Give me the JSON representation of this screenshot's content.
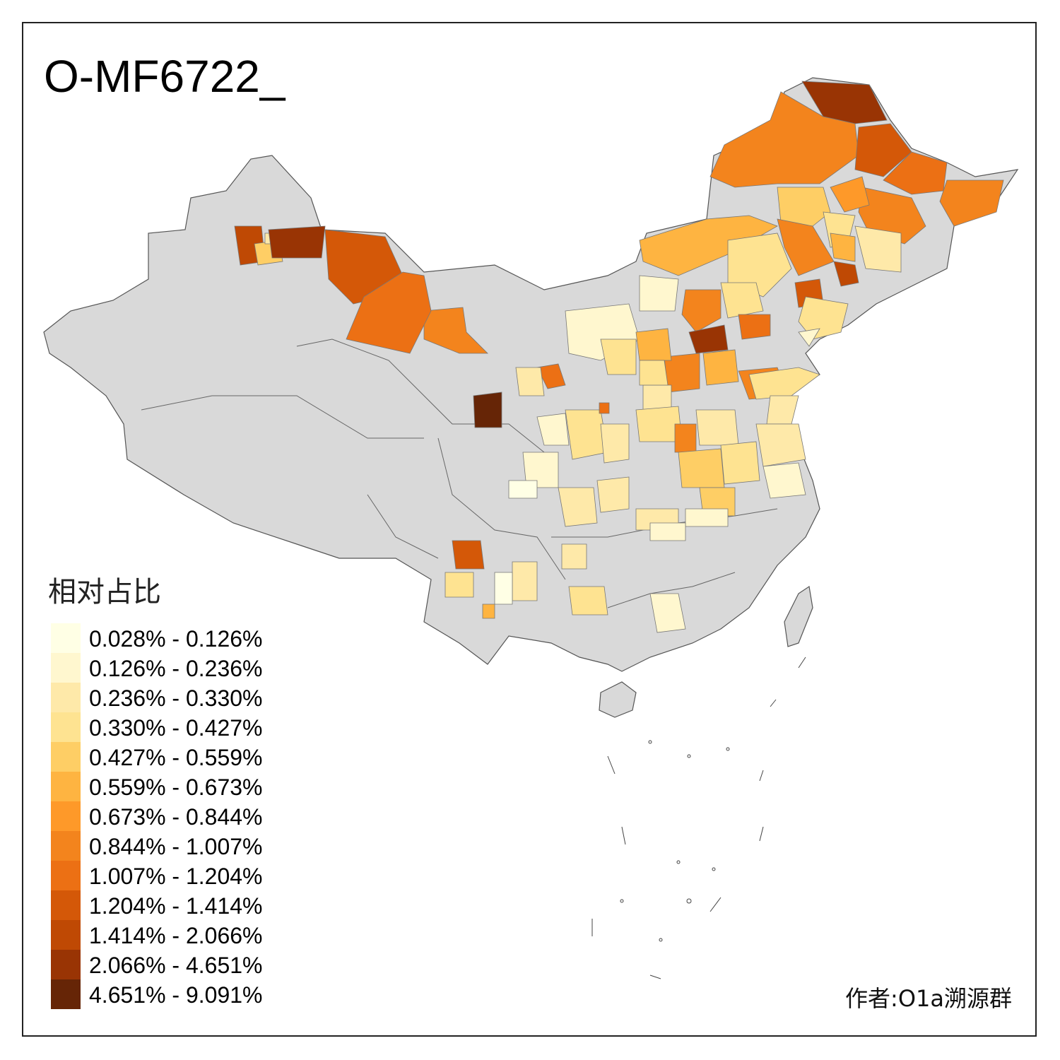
{
  "title": "O-MF6722_",
  "legend": {
    "title": "相对占比",
    "items": [
      {
        "label": "0.028% - 0.126%",
        "color": "#ffffe5"
      },
      {
        "label": "0.126% - 0.236%",
        "color": "#fff7cf"
      },
      {
        "label": "0.236% - 0.330%",
        "color": "#fee9a9"
      },
      {
        "label": "0.330% - 0.427%",
        "color": "#fee391"
      },
      {
        "label": "0.427% - 0.559%",
        "color": "#fece65"
      },
      {
        "label": "0.559% - 0.673%",
        "color": "#feb441"
      },
      {
        "label": "0.673% - 0.844%",
        "color": "#fe9929"
      },
      {
        "label": "0.844% - 1.007%",
        "color": "#f3841d"
      },
      {
        "label": "1.007% - 1.204%",
        "color": "#ec7014"
      },
      {
        "label": "1.204% - 1.414%",
        "color": "#d45808"
      },
      {
        "label": "1.414% - 2.066%",
        "color": "#bf4904"
      },
      {
        "label": "2.066% - 4.651%",
        "color": "#993404"
      },
      {
        "label": "4.651% - 9.091%",
        "color": "#662506"
      }
    ]
  },
  "author": "作者:O1a溯源群",
  "colors": {
    "no_data": "#d9d9d9",
    "border": "#555555",
    "frame": "#222222"
  }
}
